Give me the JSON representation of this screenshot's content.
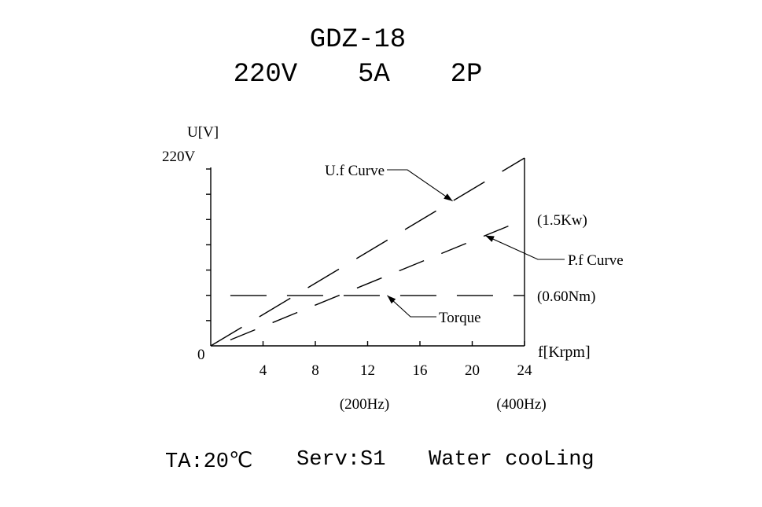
{
  "header": {
    "model": "GDZ-18",
    "specs": "220V  5A  2P"
  },
  "footer": {
    "ambient": "TA:20℃",
    "service": "Serv:S1",
    "cooling": "Water cooLing"
  },
  "chart_data": {
    "type": "line",
    "ylabel": "U[V]",
    "xlabel": "f[Krpm]",
    "y_top_label": "220V",
    "origin_label": "0",
    "x_ticks": [
      {
        "value": 4,
        "label": "4"
      },
      {
        "value": 8,
        "label": "8"
      },
      {
        "value": 12,
        "label": "12"
      },
      {
        "value": 16,
        "label": "16"
      },
      {
        "value": 20,
        "label": "20"
      },
      {
        "value": 24,
        "label": "24"
      }
    ],
    "xlim": [
      0,
      24
    ],
    "ylim": [
      0,
      220
    ],
    "y_minor_ticks": 7,
    "freq_annotations": [
      {
        "x": 12,
        "label": "(200Hz)"
      },
      {
        "x": 24,
        "label": "(400Hz)"
      }
    ],
    "series": [
      {
        "name": "U.f Curve",
        "style": "long-dash",
        "x": [
          0,
          24
        ],
        "y": [
          0,
          220
        ],
        "pointer_at": 18.5
      },
      {
        "name": "P.f Curve",
        "style": "dash",
        "x": [
          1.5,
          24
        ],
        "y": [
          7,
          148
        ],
        "end_label": "(1.5Kw)",
        "pointer_at": 21
      },
      {
        "name": "Torque",
        "style": "long-dash",
        "x": [
          1.5,
          24
        ],
        "y": [
          59,
          59
        ],
        "end_label": "(0.60Nm)",
        "pointer_at": 13.5
      }
    ]
  }
}
